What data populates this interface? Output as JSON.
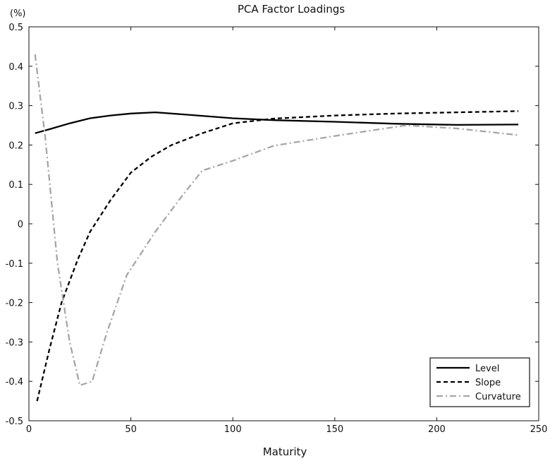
{
  "chart_data": {
    "type": "line",
    "title": "PCA Factor Loadings",
    "xlabel": "Maturity",
    "ylabel": "(%)",
    "xlim": [
      0,
      250
    ],
    "ylim": [
      -0.5,
      0.5
    ],
    "x_ticks": [
      0,
      50,
      100,
      150,
      200,
      250
    ],
    "x_tick_labels": [
      "0",
      "50",
      "100",
      "150",
      "200",
      "250"
    ],
    "y_ticks": [
      0.5,
      0.4,
      0.3,
      0.2,
      0.1,
      0,
      -0.1,
      -0.2,
      -0.3,
      -0.4,
      -0.5
    ],
    "y_tick_labels": [
      "0.5",
      "0.4",
      "0.3",
      "0.2",
      "0.1",
      "0",
      "-0.1",
      "-0.2",
      "-0.3",
      "-0.4",
      "-0.5"
    ],
    "grid": false,
    "legend_position": "bottom-right",
    "series": [
      {
        "name": "Level",
        "style": "solid",
        "color": "#000000",
        "points": [
          [
            3,
            0.23
          ],
          [
            10,
            0.24
          ],
          [
            20,
            0.255
          ],
          [
            30,
            0.268
          ],
          [
            40,
            0.275
          ],
          [
            50,
            0.28
          ],
          [
            62,
            0.283
          ],
          [
            80,
            0.276
          ],
          [
            100,
            0.268
          ],
          [
            120,
            0.263
          ],
          [
            150,
            0.259
          ],
          [
            180,
            0.254
          ],
          [
            210,
            0.251
          ],
          [
            240,
            0.252
          ]
        ]
      },
      {
        "name": "Slope",
        "style": "dashed",
        "color": "#000000",
        "points": [
          [
            4,
            -0.45
          ],
          [
            10,
            -0.32
          ],
          [
            16,
            -0.2
          ],
          [
            24,
            -0.09
          ],
          [
            30,
            -0.02
          ],
          [
            40,
            0.06
          ],
          [
            50,
            0.13
          ],
          [
            60,
            0.17
          ],
          [
            70,
            0.2
          ],
          [
            85,
            0.23
          ],
          [
            100,
            0.255
          ],
          [
            120,
            0.267
          ],
          [
            150,
            0.275
          ],
          [
            180,
            0.28
          ],
          [
            210,
            0.283
          ],
          [
            240,
            0.286
          ]
        ]
      },
      {
        "name": "Curvature",
        "style": "dash-dot",
        "color": "#a6a6a6",
        "points": [
          [
            3,
            0.43
          ],
          [
            8,
            0.22
          ],
          [
            14,
            -0.1
          ],
          [
            20,
            -0.3
          ],
          [
            25,
            -0.41
          ],
          [
            31,
            -0.4
          ],
          [
            38,
            -0.28
          ],
          [
            48,
            -0.13
          ],
          [
            62,
            -0.02
          ],
          [
            75,
            0.07
          ],
          [
            85,
            0.135
          ],
          [
            100,
            0.16
          ],
          [
            120,
            0.198
          ],
          [
            150,
            0.223
          ],
          [
            185,
            0.25
          ],
          [
            210,
            0.242
          ],
          [
            240,
            0.225
          ]
        ]
      }
    ]
  }
}
